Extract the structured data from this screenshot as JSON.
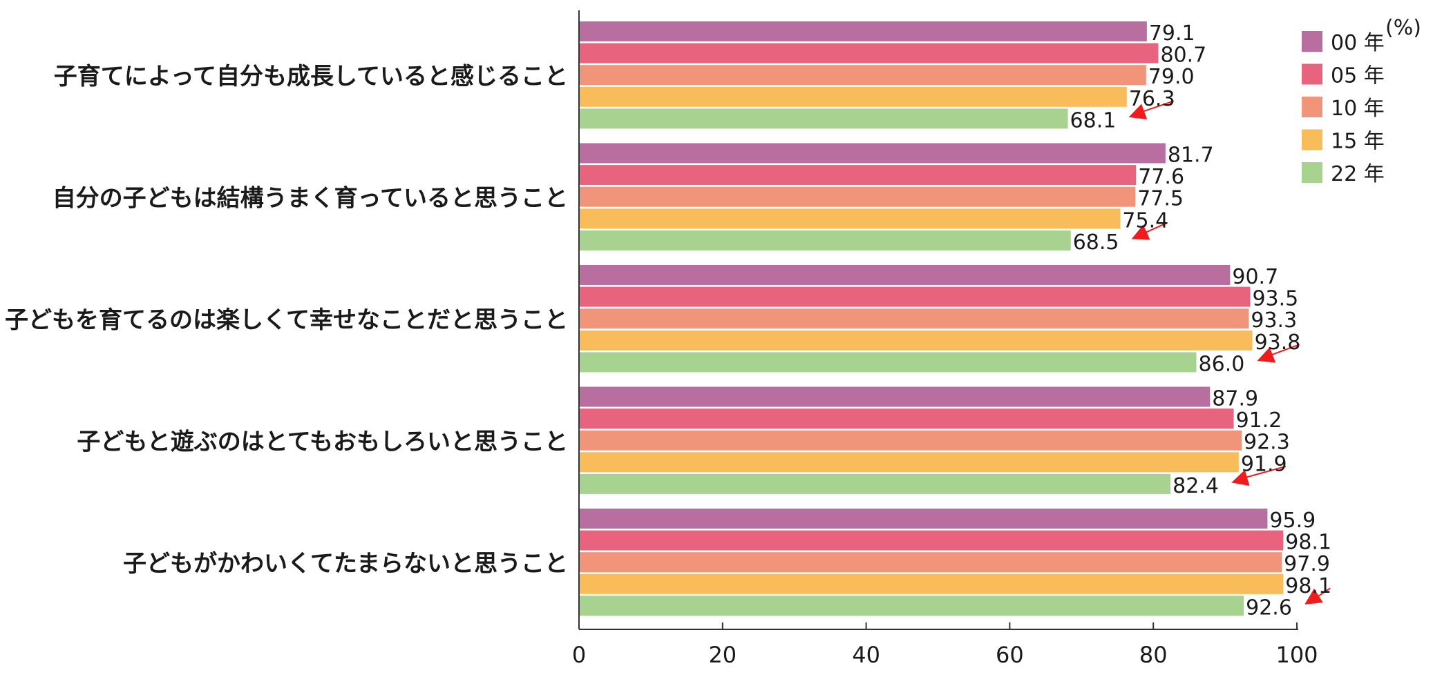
{
  "chart_data": {
    "type": "bar",
    "orientation": "horizontal",
    "unit": "(%)",
    "xlim": [
      0,
      100
    ],
    "xticks": [
      "0",
      "20",
      "40",
      "60",
      "80",
      "100"
    ],
    "grid": false,
    "legend_position": "top-right",
    "categories": [
      "子育てによって自分も成長していると感じること",
      "自分の子どもは結構うまく育っていると思うこと",
      "子どもを育てるのは楽しくて幸せなことだと思うこと",
      "子どもと遊ぶのはとてもおもしろいと思うこと",
      "子どもがかわいくてたまらないと思うこと"
    ],
    "series": [
      {
        "name": "00 年",
        "color": "#b86e9f",
        "values": [
          79.1,
          81.7,
          90.7,
          87.9,
          95.9
        ],
        "labels": [
          "79.1",
          "81.7",
          "90.7",
          "87.9",
          "95.9"
        ]
      },
      {
        "name": "05 年",
        "color": "#e8647e",
        "values": [
          80.7,
          77.6,
          93.5,
          91.2,
          98.1
        ],
        "labels": [
          "80.7",
          "77.6",
          "93.5",
          "91.2",
          "98.1"
        ]
      },
      {
        "name": "10 年",
        "color": "#f0947a",
        "values": [
          79.0,
          77.5,
          93.3,
          92.3,
          97.9
        ],
        "labels": [
          "79.0",
          "77.5",
          "93.3",
          "92.3",
          "97.9"
        ]
      },
      {
        "name": "15 年",
        "color": "#f8bc5a",
        "values": [
          76.3,
          75.4,
          93.8,
          91.9,
          98.1
        ],
        "labels": [
          "76.3",
          "75.4",
          "93.8",
          "91.9",
          "98.1"
        ]
      },
      {
        "name": "22 年",
        "color": "#a8d290",
        "values": [
          68.1,
          68.5,
          86.0,
          82.4,
          92.6
        ],
        "labels": [
          "68.1",
          "68.5",
          "86.0",
          "82.4",
          "92.6"
        ]
      }
    ],
    "annotations": {
      "decline_arrows": true,
      "arrow_color": "#ee1c1c"
    }
  }
}
